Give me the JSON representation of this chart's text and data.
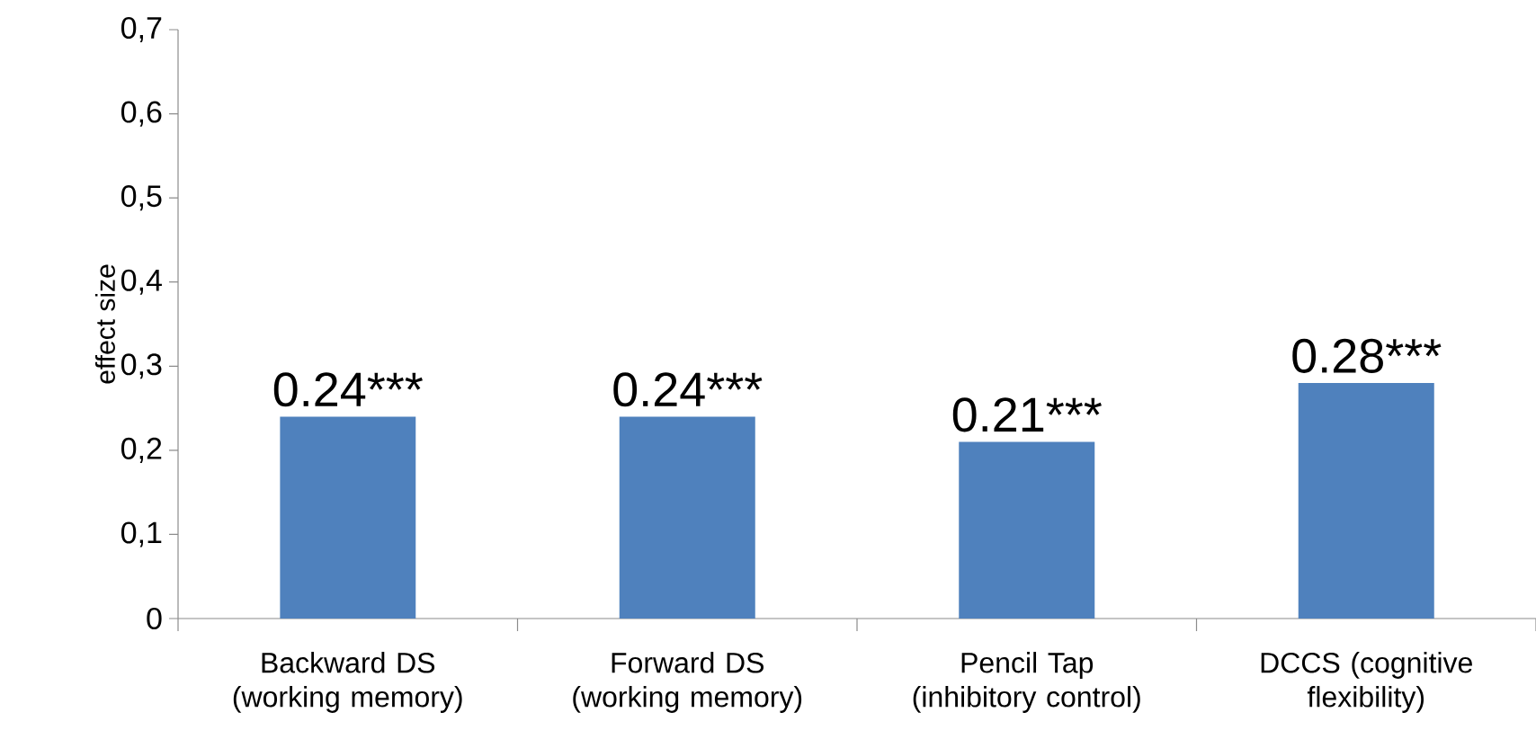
{
  "chart_data": {
    "type": "bar",
    "ylabel": "effect size",
    "categories": [
      "Backward DS (working memory)",
      "Forward DS (working memory)",
      "Pencil Tap (inhibitory control)",
      "DCCS (cognitive flexibility)"
    ],
    "values": [
      0.24,
      0.24,
      0.21,
      0.28
    ],
    "value_labels": [
      "0.24***",
      "0.24***",
      "0.21***",
      "0.28***"
    ],
    "color": "#4f81bd",
    "ylim": [
      0,
      0.7
    ],
    "yticks": [
      {
        "value": 0,
        "label": "0"
      },
      {
        "value": 0.1,
        "label": "0,1"
      },
      {
        "value": 0.2,
        "label": "0,2"
      },
      {
        "value": 0.3,
        "label": "0,3"
      },
      {
        "value": 0.4,
        "label": "0,4"
      },
      {
        "value": 0.5,
        "label": "0,5"
      },
      {
        "value": 0.6,
        "label": "0,6"
      },
      {
        "value": 0.7,
        "label": "0,7"
      }
    ],
    "grid": false
  }
}
